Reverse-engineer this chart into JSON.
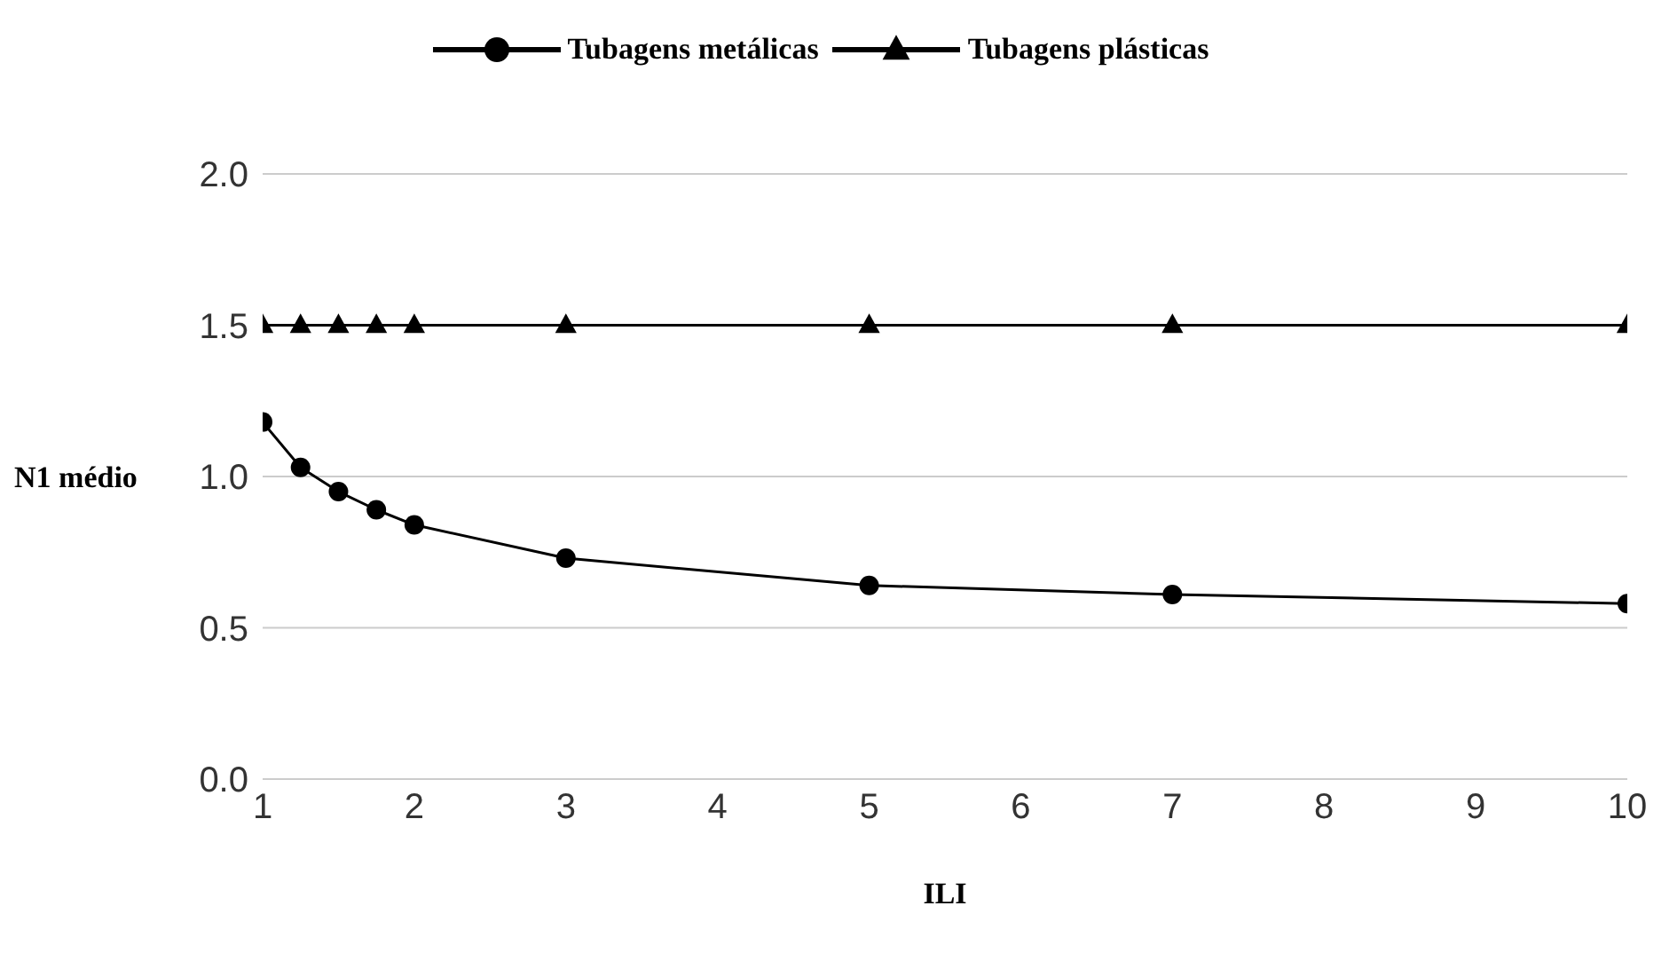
{
  "chart_data": {
    "type": "line",
    "xlabel": "ILI",
    "ylabel": "N1 médio",
    "x": [
      1,
      1.25,
      1.5,
      1.75,
      2,
      3,
      5,
      7,
      10
    ],
    "series": [
      {
        "name": "Tubagens metálicas",
        "color": "#000000",
        "marker": "circle",
        "values": [
          1.18,
          1.03,
          0.95,
          0.89,
          0.84,
          0.73,
          0.64,
          0.61,
          0.58
        ]
      },
      {
        "name": "Tubagens plásticas",
        "color": "#000000",
        "marker": "triangle",
        "values": [
          1.5,
          1.5,
          1.5,
          1.5,
          1.5,
          1.5,
          1.5,
          1.5,
          1.5
        ]
      }
    ],
    "xlim": [
      1,
      10
    ],
    "xticks": [
      1,
      2,
      3,
      4,
      5,
      6,
      7,
      8,
      9,
      10
    ],
    "ylim": [
      0,
      2
    ],
    "yticks": [
      {
        "value": 0,
        "label": "0.0"
      },
      {
        "value": 0.5,
        "label": "0.5"
      },
      {
        "value": 1,
        "label": "1.0"
      },
      {
        "value": 1.5,
        "label": "1.5"
      },
      {
        "value": 2,
        "label": "2.0"
      }
    ],
    "grid": "y",
    "legend": "top"
  }
}
